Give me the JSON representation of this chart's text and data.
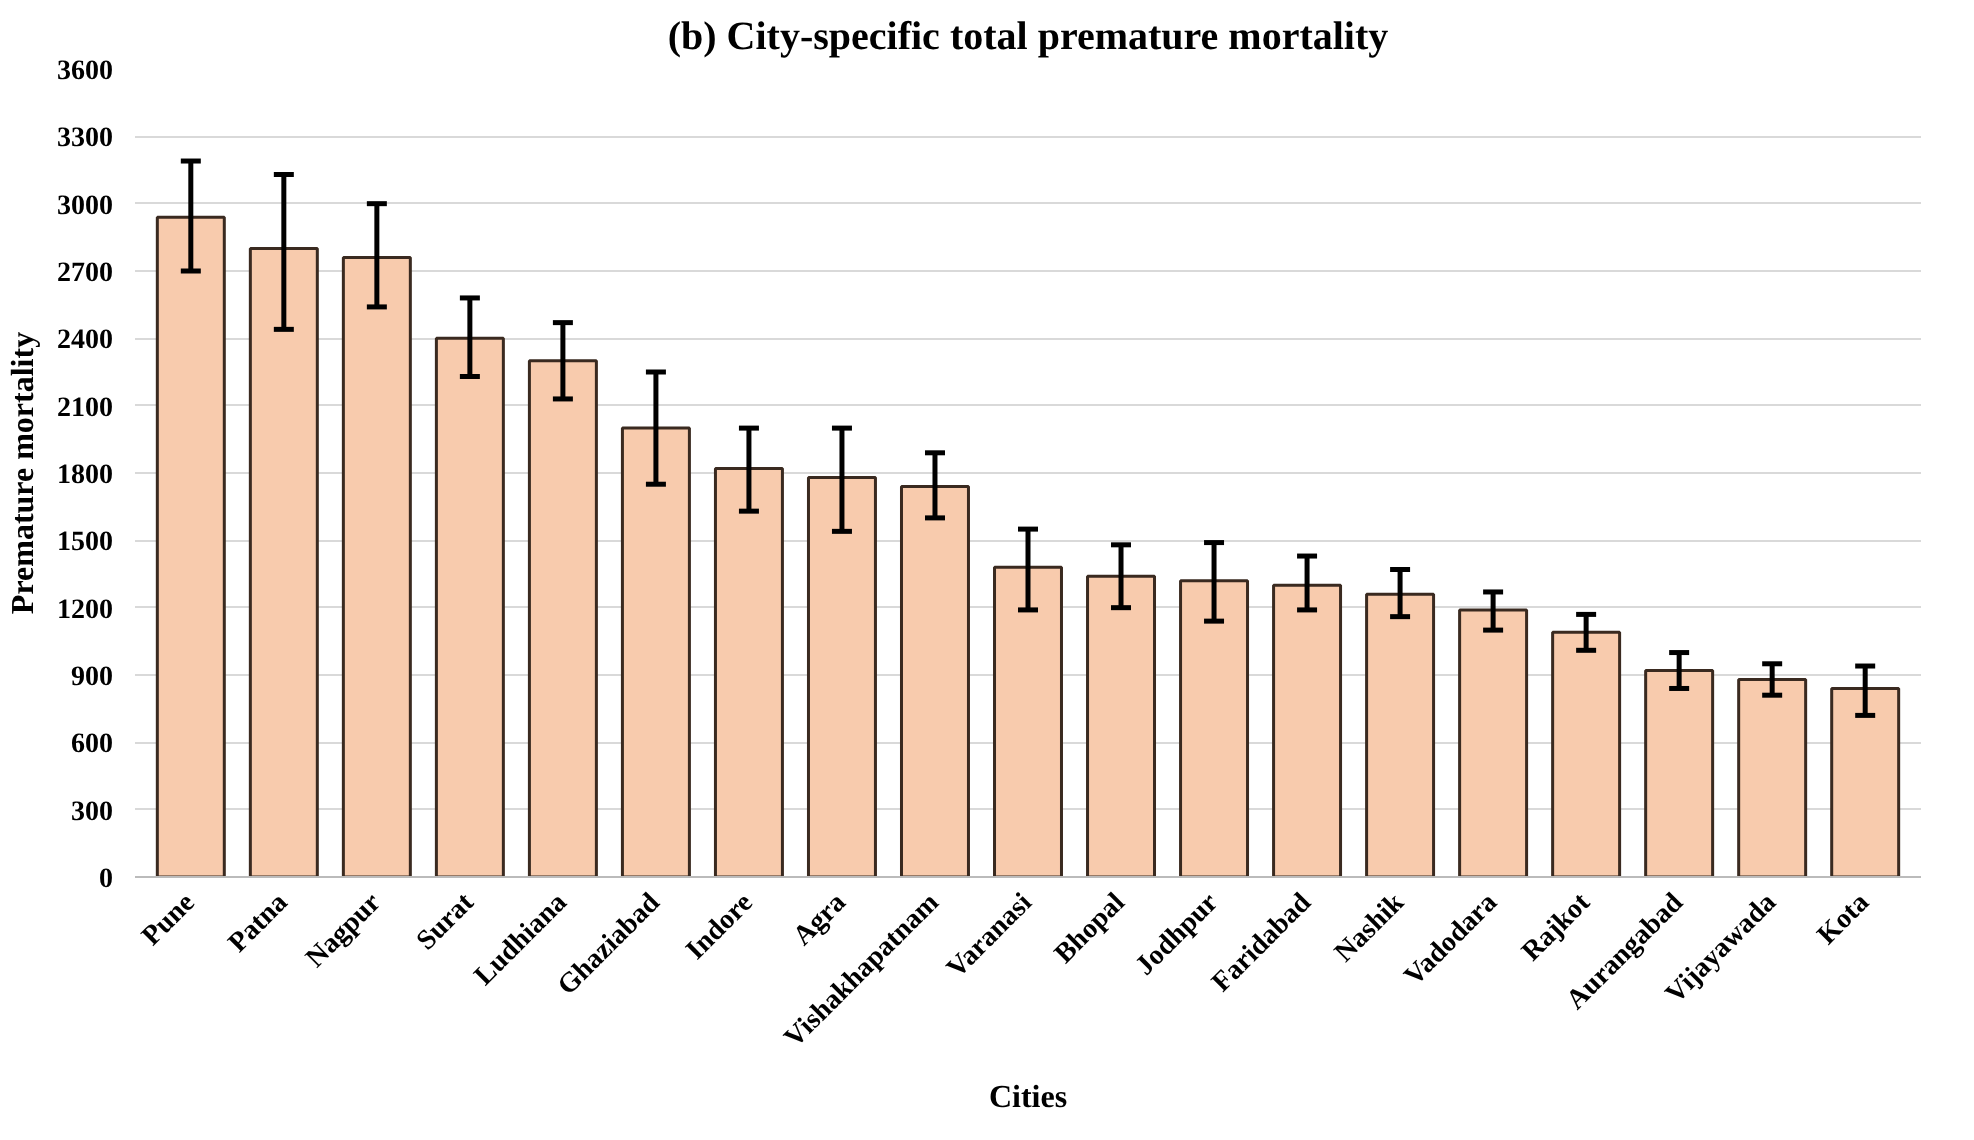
{
  "chart_data": {
    "type": "bar",
    "title": "(b) City-specific total premature mortality",
    "xlabel": "Cities",
    "ylabel": "Premature mortality",
    "categories": [
      "Pune",
      "Patna",
      "Nagpur",
      "Surat",
      "Ludhiana",
      "Ghaziabad",
      "Indore",
      "Agra",
      "Vishakhapatnam",
      "Varanasi",
      "Bhopal",
      "Jodhpur",
      "Faridabad",
      "Nashik",
      "Vadodara",
      "Rajkot",
      "Aurangabad",
      "Vijayawada",
      "Kota"
    ],
    "values": [
      2940,
      2800,
      2760,
      2400,
      2300,
      2000,
      1820,
      1780,
      1740,
      1380,
      1340,
      1320,
      1300,
      1260,
      1190,
      1090,
      920,
      880,
      840
    ],
    "errors": [
      [
        2700,
        3190
      ],
      [
        2440,
        3130
      ],
      [
        2540,
        3000
      ],
      [
        2230,
        2580
      ],
      [
        2130,
        2470
      ],
      [
        1750,
        2250
      ],
      [
        1630,
        2000
      ],
      [
        1540,
        2000
      ],
      [
        1600,
        1890
      ],
      [
        1190,
        1550
      ],
      [
        1200,
        1480
      ],
      [
        1140,
        1490
      ],
      [
        1190,
        1430
      ],
      [
        1160,
        1370
      ],
      [
        1100,
        1270
      ],
      [
        1010,
        1170
      ],
      [
        840,
        1000
      ],
      [
        810,
        950
      ],
      [
        720,
        940
      ]
    ],
    "color": "#f8cbad",
    "ylim": [
      0,
      3600
    ],
    "yticks": [
      0,
      300,
      600,
      900,
      1200,
      1500,
      1800,
      2100,
      2400,
      2700,
      3000,
      3300,
      3600
    ],
    "grid": "y"
  }
}
